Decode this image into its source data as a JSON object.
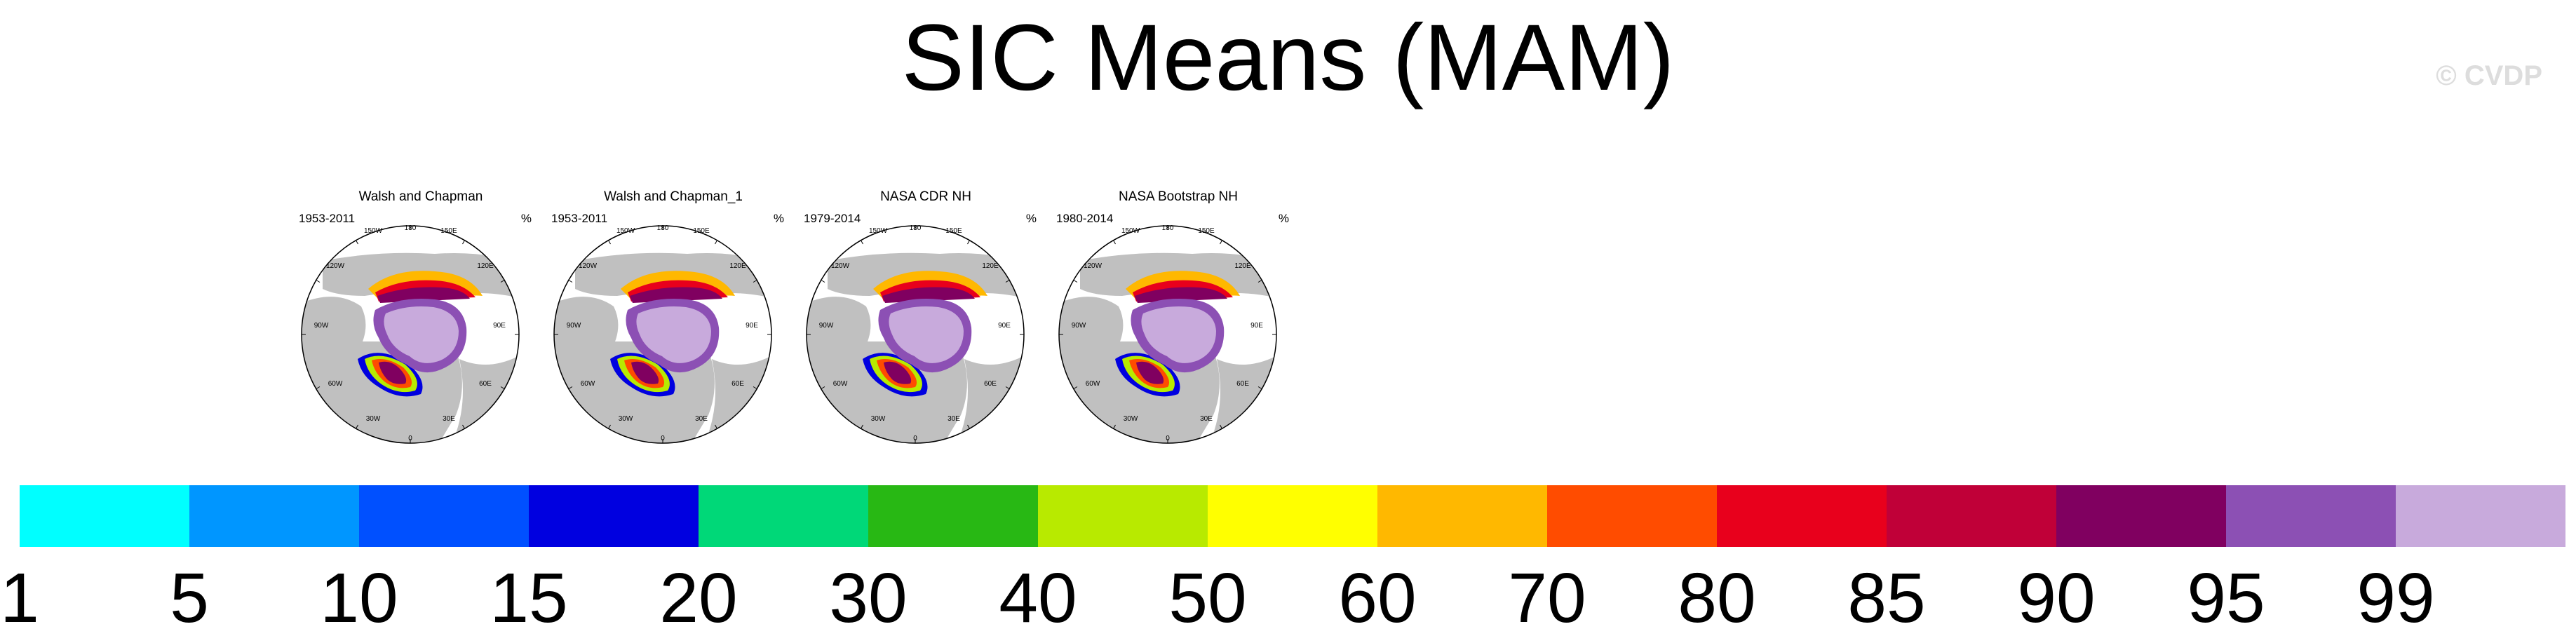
{
  "title": "SIC Means (MAM)",
  "copyright": "© CVDP",
  "panels": [
    {
      "name": "Walsh and Chapman",
      "period": "1953-2011",
      "unit": "%"
    },
    {
      "name": "Walsh and Chapman_1",
      "period": "1953-2011",
      "unit": "%"
    },
    {
      "name": "NASA CDR NH",
      "period": "1979-2014",
      "unit": "%"
    },
    {
      "name": "NASA Bootstrap NH",
      "period": "1980-2014",
      "unit": "%"
    }
  ],
  "map_labels": [
    "180",
    "150W",
    "150E",
    "120W",
    "120E",
    "90W",
    "90E",
    "60W",
    "60E",
    "30W",
    "30E",
    "0"
  ],
  "colorbar": {
    "colors": [
      "#00ffff",
      "#0096ff",
      "#0050ff",
      "#0000e0",
      "#00d878",
      "#28b814",
      "#b8ea00",
      "#ffff00",
      "#ffb800",
      "#ff4c00",
      "#e8001c",
      "#c00038",
      "#800060",
      "#8c50b4",
      "#c8aadc"
    ],
    "ticks": [
      "1",
      "5",
      "10",
      "15",
      "20",
      "30",
      "40",
      "50",
      "60",
      "70",
      "80",
      "85",
      "90",
      "95",
      "99"
    ]
  },
  "land_color": "#c0c0c0",
  "ice_core_color": "#c8aadc"
}
